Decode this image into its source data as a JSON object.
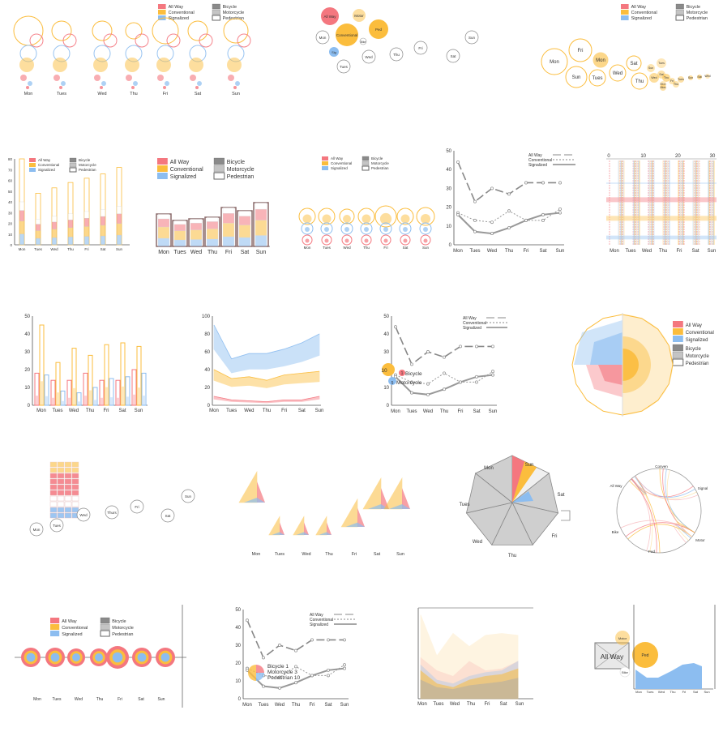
{
  "colors": {
    "all_way": "#f4777f",
    "conventional": "#fbbd3d",
    "signalized": "#8cbdf0",
    "bicycle": "#8a8a8a",
    "motorcycle": "#c4c4c4",
    "pedestrian": "#ffffff",
    "axis": "#555555"
  },
  "legend": {
    "modes": [
      "All Way",
      "Conventional",
      "Signalized"
    ],
    "users": [
      "Bicycle",
      "Motorcycle",
      "Pedestrian"
    ]
  },
  "labels": {
    "days": [
      "Mon",
      "Tues",
      "Wed",
      "Thu",
      "Fri",
      "Sat",
      "Sun"
    ],
    "days_thurs": [
      "Mon",
      "Tues",
      "Wed",
      "Thurs",
      "Fri",
      "Sat",
      "Sun"
    ],
    "bubble_nodes": [
      "All Way",
      "Motor",
      "Conventional",
      "Ped",
      "Bike",
      "Sig"
    ],
    "chord_nodes": [
      "Conven",
      "Signal",
      "Motor",
      "Ped",
      "Bike",
      "All Way"
    ],
    "cluster_small": [
      "Tues",
      "Sun",
      "Sat",
      "Wed",
      "Thu",
      "Mon",
      "Fri"
    ],
    "pie_labels": [
      "Bicycle",
      "Motorcycle"
    ],
    "pie_values": [
      "10",
      "9"
    ],
    "pie_big_values": [
      "1",
      "5"
    ],
    "inline_legend": [
      "Bicycle  1",
      "Motorcycle  3",
      "Pedestrian  10"
    ],
    "box_diagram": [
      "All Way",
      "Motor",
      "Bike",
      "Ped"
    ]
  },
  "chart_data": [
    {
      "type": "line",
      "panel": "row2-line",
      "categories": [
        "Mon",
        "Tues",
        "Wed",
        "Thu",
        "Fri",
        "Sat",
        "Sun"
      ],
      "ylim": [
        0,
        50
      ],
      "yticks": [
        0,
        10,
        20,
        30,
        40,
        50
      ],
      "series": [
        {
          "name": "All Way",
          "values": [
            44,
            23,
            30,
            27,
            33,
            33,
            33
          ]
        },
        {
          "name": "Conventional",
          "values": [
            17,
            13,
            12,
            18,
            13,
            13,
            19
          ]
        },
        {
          "name": "Signalized",
          "values": [
            16,
            7,
            6,
            9,
            13,
            16,
            17
          ]
        }
      ]
    },
    {
      "type": "bar",
      "panel": "row3-bars",
      "categories": [
        "Mon",
        "Tues",
        "Wed",
        "Thu",
        "Fri",
        "Sat",
        "Sun"
      ],
      "ylim": [
        0,
        50
      ],
      "yticks": [
        0,
        10,
        20,
        30,
        40,
        50
      ],
      "series": [
        {
          "name": "All Way",
          "values": [
            18,
            14,
            14,
            18,
            14,
            14,
            20
          ]
        },
        {
          "name": "Conventional",
          "values": [
            45,
            24,
            32,
            28,
            34,
            35,
            33
          ]
        },
        {
          "name": "Signalized",
          "values": [
            17,
            8,
            7,
            10,
            15,
            16,
            18
          ]
        }
      ]
    },
    {
      "type": "area",
      "panel": "row3-area",
      "categories": [
        "Mon",
        "Tues",
        "Wed",
        "Thu",
        "Fri",
        "Sat",
        "Sun"
      ],
      "ylim": [
        0,
        100
      ],
      "yticks": [
        0,
        20,
        40,
        60,
        80,
        100
      ],
      "series": [
        {
          "name": "Signalized",
          "values": [
            90,
            52,
            58,
            58,
            63,
            70,
            80
          ]
        },
        {
          "name": "Conventional",
          "values": [
            40,
            30,
            32,
            28,
            34,
            36,
            38
          ]
        },
        {
          "name": "All Way",
          "values": [
            10,
            6,
            5,
            4,
            6,
            6,
            10
          ]
        }
      ]
    },
    {
      "type": "line",
      "panel": "row3-line",
      "categories": [
        "Mon",
        "Tues",
        "Wed",
        "Thu",
        "Fri",
        "Sat",
        "Sun"
      ],
      "ylim": [
        0,
        50
      ],
      "yticks": [
        0,
        10,
        20,
        30,
        40,
        50
      ],
      "series": [
        {
          "name": "All Way",
          "values": [
            44,
            23,
            30,
            27,
            33,
            33,
            33
          ]
        },
        {
          "name": "Conventional",
          "values": [
            17,
            13,
            12,
            18,
            13,
            13,
            19
          ]
        },
        {
          "name": "Signalized",
          "values": [
            16,
            7,
            6,
            9,
            13,
            16,
            17
          ]
        }
      ]
    },
    {
      "type": "line",
      "panel": "row5-line",
      "categories": [
        "Mon",
        "Tues",
        "Wed",
        "Thu",
        "Fri",
        "Sat",
        "Sun"
      ],
      "ylim": [
        0,
        50
      ],
      "yticks": [
        0,
        10,
        20,
        30,
        40,
        50
      ],
      "series": [
        {
          "name": "All Way",
          "values": [
            44,
            23,
            30,
            27,
            33,
            33,
            33
          ]
        },
        {
          "name": "Conventional",
          "values": [
            17,
            13,
            12,
            18,
            13,
            13,
            19
          ]
        },
        {
          "name": "Signalized",
          "values": [
            16,
            7,
            6,
            9,
            13,
            16,
            17
          ]
        }
      ]
    },
    {
      "type": "line",
      "panel": "row2-lines-dense",
      "xticks": [
        0,
        10,
        20,
        30
      ],
      "categories": [
        "Mon",
        "Tues",
        "Wed",
        "Thu",
        "Fri",
        "Sat",
        "Sun"
      ]
    },
    {
      "type": "bar",
      "panel": "row2-stacked-small",
      "categories": [
        "Mon",
        "Tues",
        "Wed",
        "Thu",
        "Fri",
        "Sat",
        "Sun"
      ],
      "yticks": [
        0,
        10,
        20,
        30,
        40,
        50,
        60,
        70,
        80
      ],
      "values": [
        80,
        48,
        53,
        58,
        62,
        66,
        72
      ]
    },
    {
      "type": "area",
      "panel": "row5-area",
      "categories": [
        "Mon",
        "Tues",
        "Wed",
        "Thu",
        "Fri",
        "Sat",
        "Sun"
      ]
    },
    {
      "type": "bar",
      "panel": "row5-area-bar",
      "categories": [
        "Mon",
        "Tues",
        "Wed",
        "Thu",
        "Fri",
        "Sat",
        "Sun"
      ]
    }
  ]
}
